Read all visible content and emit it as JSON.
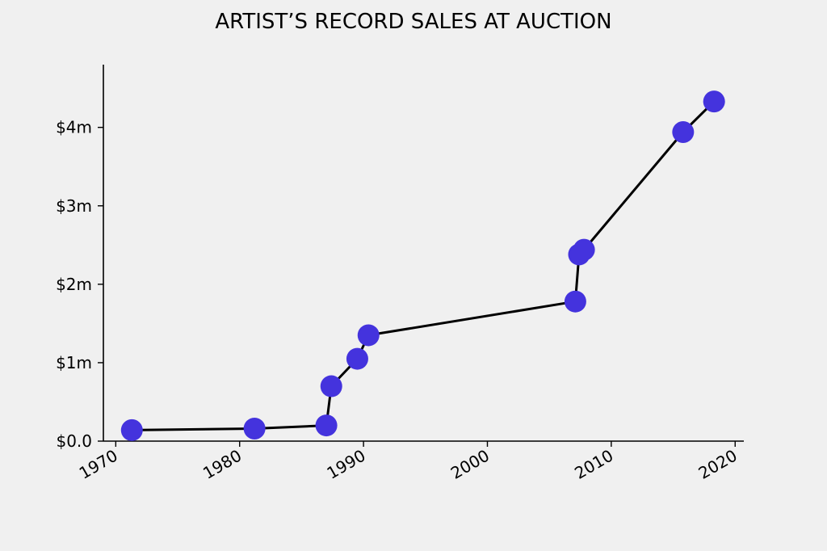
{
  "chart_data": {
    "type": "line",
    "title": "ARTIST’S RECORD SALES AT AUCTION",
    "xlabel": "",
    "ylabel": "",
    "xlim": [
      1969,
      2020.7
    ],
    "ylim": [
      0,
      4.8
    ],
    "x_ticks": [
      {
        "value": 1970,
        "label": "1970"
      },
      {
        "value": 1980,
        "label": "1980"
      },
      {
        "value": 1990,
        "label": "1990"
      },
      {
        "value": 2000,
        "label": "2000"
      },
      {
        "value": 2010,
        "label": "2010"
      },
      {
        "value": 2020,
        "label": "2020"
      }
    ],
    "y_ticks": [
      {
        "value": 0,
        "label": "$0.0"
      },
      {
        "value": 1,
        "label": "$1m"
      },
      {
        "value": 2,
        "label": "$2m"
      },
      {
        "value": 3,
        "label": "$3m"
      },
      {
        "value": 4,
        "label": "$4m"
      }
    ],
    "series": [
      {
        "x": [
          1971.3,
          1981.2,
          1987.0,
          1987.4,
          1989.5,
          1990.4,
          2007.1,
          2007.4,
          2007.8,
          2015.8,
          2018.3
        ],
        "y": [
          0.14,
          0.16,
          0.2,
          0.7,
          1.05,
          1.35,
          1.78,
          2.38,
          2.44,
          3.94,
          4.33
        ]
      }
    ],
    "grid": false,
    "line_color": "#000000",
    "marker_color": "#4433dd"
  }
}
